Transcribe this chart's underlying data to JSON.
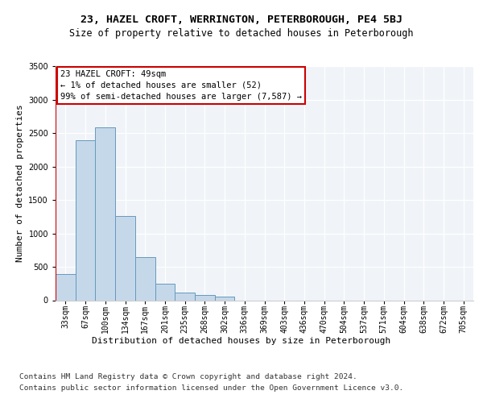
{
  "title_line1": "23, HAZEL CROFT, WERRINGTON, PETERBOROUGH, PE4 5BJ",
  "title_line2": "Size of property relative to detached houses in Peterborough",
  "xlabel": "Distribution of detached houses by size in Peterborough",
  "ylabel": "Number of detached properties",
  "footnote_line1": "Contains HM Land Registry data © Crown copyright and database right 2024.",
  "footnote_line2": "Contains public sector information licensed under the Open Government Licence v3.0.",
  "bar_labels": [
    "33sqm",
    "67sqm",
    "100sqm",
    "134sqm",
    "167sqm",
    "201sqm",
    "235sqm",
    "268sqm",
    "302sqm",
    "336sqm",
    "369sqm",
    "403sqm",
    "436sqm",
    "470sqm",
    "504sqm",
    "537sqm",
    "571sqm",
    "604sqm",
    "638sqm",
    "672sqm",
    "705sqm"
  ],
  "bar_values": [
    390,
    2400,
    2590,
    1260,
    640,
    250,
    110,
    75,
    60,
    0,
    0,
    0,
    0,
    0,
    0,
    0,
    0,
    0,
    0,
    0,
    0
  ],
  "bar_color": "#c5d8ea",
  "bar_edge_color": "#6699bb",
  "annotation_text": "23 HAZEL CROFT: 49sqm\n← 1% of detached houses are smaller (52)\n99% of semi-detached houses are larger (7,587) →",
  "ylim": [
    0,
    3500
  ],
  "yticks": [
    0,
    500,
    1000,
    1500,
    2000,
    2500,
    3000,
    3500
  ],
  "fig_bg_color": "#ffffff",
  "plot_bg_color": "#f0f4f8",
  "annotation_box_color": "#ffffff",
  "annotation_box_edge": "#cc0000",
  "property_line_color": "#cc0000",
  "grid_color": "#ffffff",
  "title_fontsize": 9.5,
  "subtitle_fontsize": 8.5,
  "annotation_fontsize": 7.5,
  "ylabel_fontsize": 8,
  "xlabel_fontsize": 8,
  "tick_fontsize": 7,
  "footnote_fontsize": 6.8
}
